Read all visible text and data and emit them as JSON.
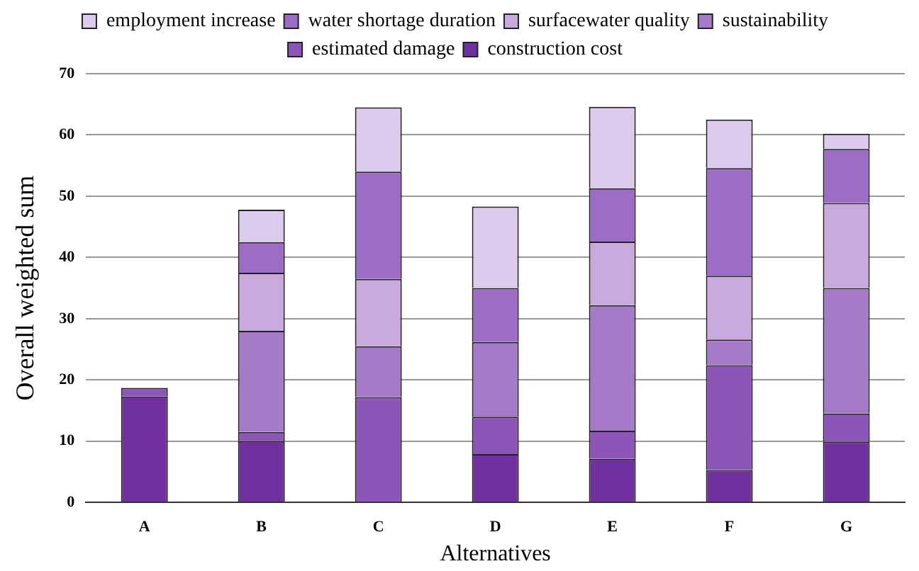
{
  "chart_data": {
    "type": "bar",
    "stacked": true,
    "xlabel": "Alternatives",
    "ylabel": "Overall weighted sum",
    "categories": [
      "A",
      "B",
      "C",
      "D",
      "E",
      "F",
      "G"
    ],
    "series": [
      {
        "name": "construction cost",
        "color": "#7030a0",
        "values": [
          17.3,
          10,
          0,
          7.9,
          7.1,
          5.3,
          9.9
        ]
      },
      {
        "name": "estimated damage",
        "color": "#8e55b8",
        "values": [
          1.4,
          1.5,
          17.2,
          6.1,
          4.6,
          17.1,
          4.6
        ]
      },
      {
        "name": "sustainability",
        "color": "#a57bc9",
        "values": [
          0,
          16.5,
          8.3,
          12.2,
          20.5,
          4.2,
          20.5
        ]
      },
      {
        "name": "surfacewater quality",
        "color": "#c9aadf",
        "values": [
          0,
          9.5,
          11,
          0,
          10.4,
          10.4,
          13.9
        ]
      },
      {
        "name": "water shortage duration",
        "color": "#9c6cc6",
        "values": [
          0,
          5,
          17.5,
          8.8,
          8.7,
          17.6,
          8.8
        ]
      },
      {
        "name": "employment increase",
        "color": "#dccbec",
        "values": [
          0,
          5.3,
          10.5,
          13.3,
          13.3,
          7.9,
          2.5
        ]
      }
    ],
    "ylim": [
      0,
      70
    ],
    "yticks": [
      0,
      10,
      20,
      30,
      40,
      50,
      60,
      70
    ],
    "grid": "y",
    "legend": "top"
  }
}
